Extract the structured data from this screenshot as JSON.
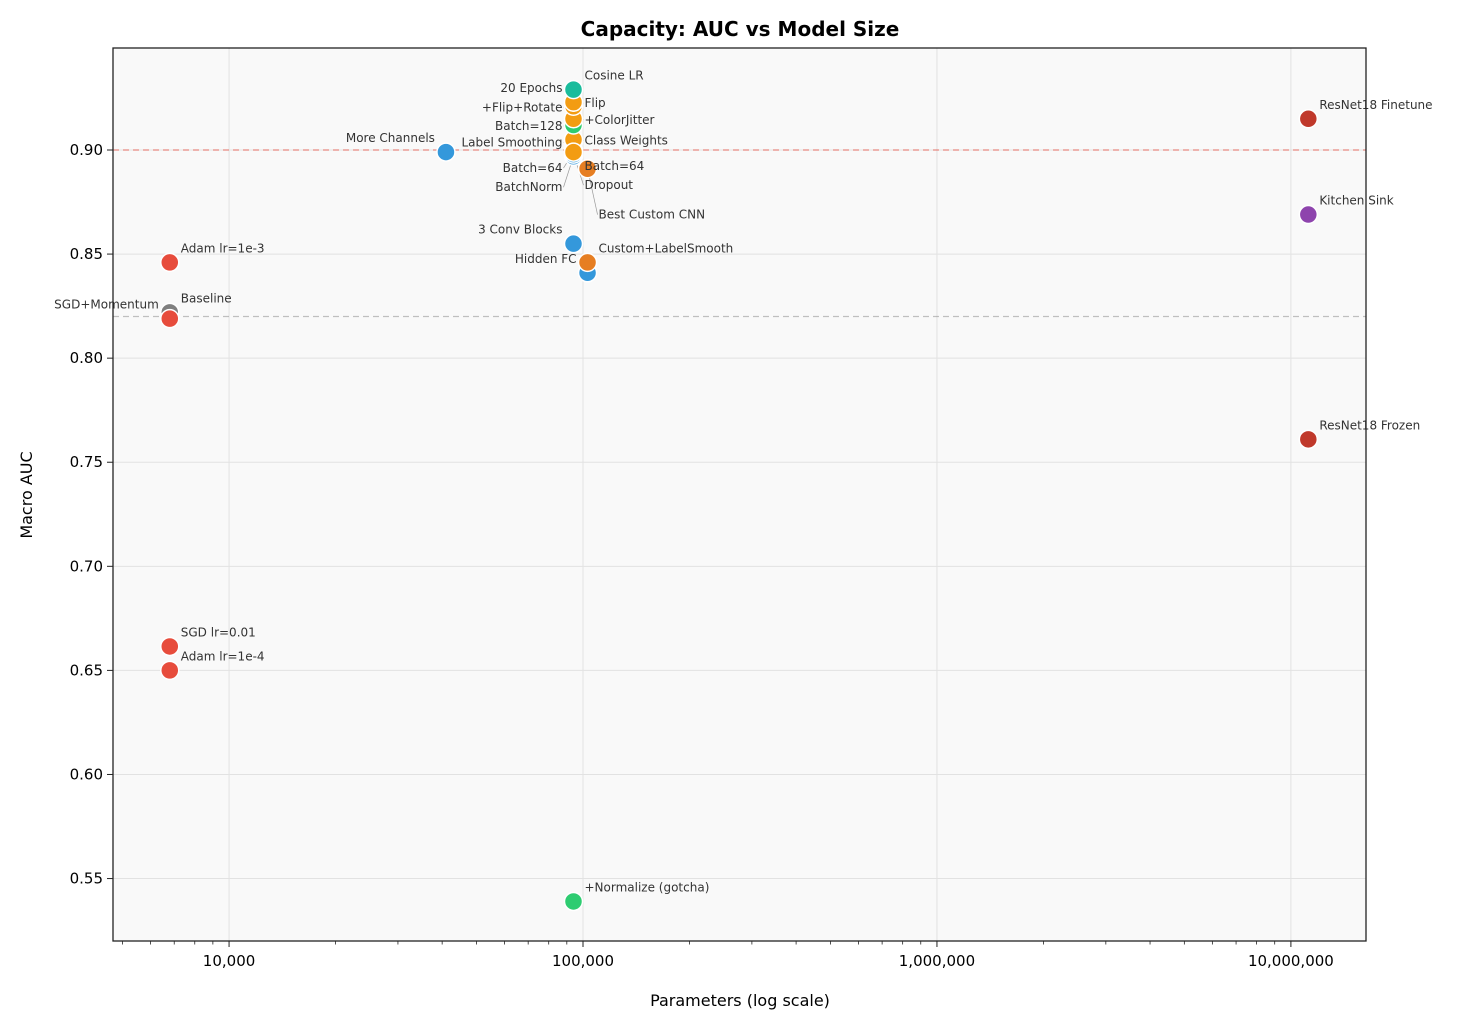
{
  "chart_data": {
    "type": "scatter",
    "title": "Capacity: AUC vs Model Size",
    "xlabel": "Parameters (log scale)",
    "ylabel": "Macro AUC",
    "xscale": "log",
    "xlim": [
      4700,
      16300000
    ],
    "ylim": [
      0.52,
      0.949
    ],
    "grid": true,
    "xticks": [
      10000,
      100000,
      1000000,
      10000000
    ],
    "xtick_labels": [
      "10,000",
      "100,000",
      "1,000,000",
      "10,000,000"
    ],
    "yticks": [
      0.55,
      0.6,
      0.65,
      0.7,
      0.75,
      0.8,
      0.85,
      0.9
    ],
    "ytick_labels": [
      "0.55",
      "0.60",
      "0.65",
      "0.70",
      "0.75",
      "0.80",
      "0.85",
      "0.90"
    ],
    "reference_lines": [
      {
        "y": 0.9,
        "color": "#e74c3c",
        "style": "dashed"
      },
      {
        "y": 0.82,
        "color": "#999999",
        "style": "dashed"
      }
    ],
    "points": [
      {
        "label": "Baseline",
        "x": 6800,
        "y": 0.822,
        "color": "#7f7f7f"
      },
      {
        "label": "SGD+Momentum",
        "x": 6800,
        "y": 0.819,
        "color": "#e74c3c"
      },
      {
        "label": "Adam lr=1e-3",
        "x": 6800,
        "y": 0.846,
        "color": "#e74c3c"
      },
      {
        "label": "SGD lr=0.01",
        "x": 6800,
        "y": 0.6615,
        "color": "#e74c3c"
      },
      {
        "label": "Adam lr=1e-4",
        "x": 6800,
        "y": 0.65,
        "color": "#e74c3c"
      },
      {
        "label": "More Channels",
        "x": 41000,
        "y": 0.899,
        "color": "#3498db"
      },
      {
        "label": "3 Conv Blocks",
        "x": 94000,
        "y": 0.855,
        "color": "#3498db"
      },
      {
        "label": "Hidden FC",
        "x": 103000,
        "y": 0.841,
        "color": "#3498db"
      },
      {
        "label": "Custom+LabelSmooth",
        "x": 103000,
        "y": 0.846,
        "color": "#e67e22"
      },
      {
        "label": "BatchNorm",
        "x": 94000,
        "y": 0.897,
        "color": "#3498db"
      },
      {
        "label": "Dropout",
        "x": 94000,
        "y": 0.898,
        "color": "#3498db"
      },
      {
        "label": "Batch=64",
        "x": 94000,
        "y": 0.9,
        "color": "#9b59b6"
      },
      {
        "label": "Label Smoothing",
        "x": 94000,
        "y": 0.904,
        "color": "#9b59b6"
      },
      {
        "label": "Class Weights",
        "x": 94000,
        "y": 0.905,
        "color": "#f39c12"
      },
      {
        "label": "Batch=128",
        "x": 94000,
        "y": 0.912,
        "color": "#2ecc71"
      },
      {
        "label": "+ColorJitter",
        "x": 94000,
        "y": 0.915,
        "color": "#f39c12"
      },
      {
        "label": "+Flip+Rotate",
        "x": 94000,
        "y": 0.921,
        "color": "#f39c12"
      },
      {
        "label": "20 Epochs",
        "x": 94000,
        "y": 0.923,
        "color": "#1abc9c"
      },
      {
        "label": "Flip",
        "x": 94000,
        "y": 0.923,
        "color": "#f39c12"
      },
      {
        "label": "Cosine LR",
        "x": 94000,
        "y": 0.929,
        "color": "#1abc9c"
      },
      {
        "label": "Batch=64 ",
        "x": 94000,
        "y": 0.899,
        "color": "#f39c12"
      },
      {
        "label": "Best Custom CNN",
        "x": 103000,
        "y": 0.891,
        "color": "#e67e22"
      },
      {
        "label": "+Normalize (gotcha)",
        "x": 94000,
        "y": 0.539,
        "color": "#2ecc71"
      },
      {
        "label": "Kitchen Sink",
        "x": 11200000,
        "y": 0.869,
        "color": "#8e44ad"
      },
      {
        "label": "ResNet18 Finetune",
        "x": 11200000,
        "y": 0.915,
        "color": "#c0392b"
      },
      {
        "label": "ResNet18 Frozen",
        "x": 11200000,
        "y": 0.761,
        "color": "#c0392b"
      }
    ]
  }
}
